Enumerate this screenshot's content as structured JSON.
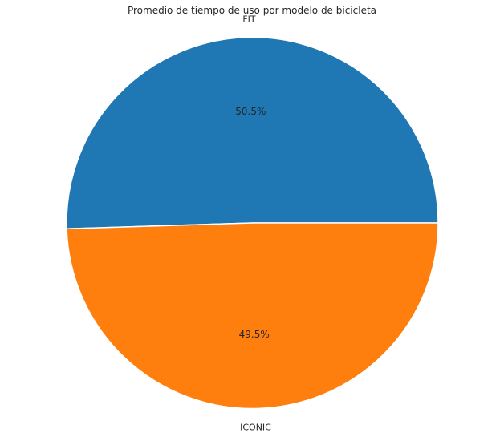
{
  "chart_data": {
    "type": "pie",
    "title": "Promedio de tiempo de uso por modelo de bicicleta",
    "categories": [
      "FIT",
      "ICONIC"
    ],
    "values": [
      50.5,
      49.5
    ],
    "autopct": [
      "50.5%",
      "49.5%"
    ],
    "colors": [
      "#1f77b4",
      "#ff7f0e"
    ],
    "start_angle_deg": 0,
    "direction": "counterclockwise",
    "legend": "none"
  }
}
